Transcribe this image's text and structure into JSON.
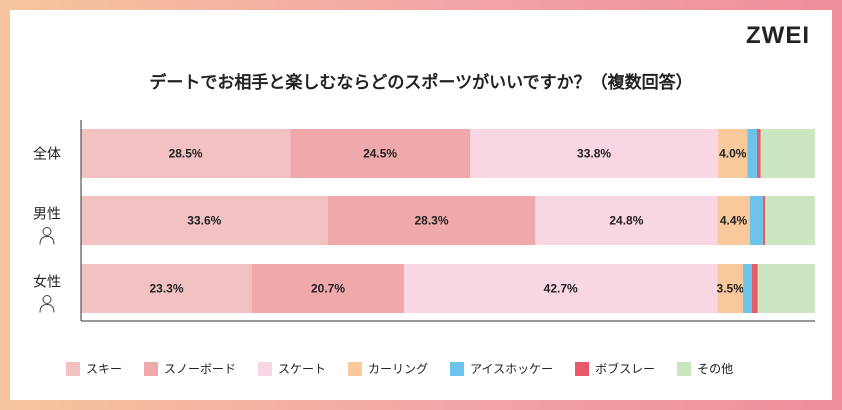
{
  "brand": "ZWEI",
  "chart_data": {
    "type": "bar",
    "orientation": "horizontal-stacked-100",
    "title": "デートでお相手と楽しむならどのスポーツがいいですか？（複数回答）",
    "categories": [
      "全体",
      "男性",
      "女性"
    ],
    "series": [
      {
        "name": "スキー",
        "color": "#f2c2c3",
        "values": [
          28.5,
          33.6,
          23.3
        ]
      },
      {
        "name": "スノーボード",
        "color": "#f0a9aa",
        "values": [
          24.5,
          28.3,
          20.7
        ]
      },
      {
        "name": "スケート",
        "color": "#f9d6e3",
        "values": [
          33.8,
          24.8,
          42.7
        ]
      },
      {
        "name": "カーリング",
        "color": "#f9c99b",
        "values": [
          4.0,
          4.4,
          3.5
        ]
      },
      {
        "name": "アイスホッケー",
        "color": "#6cc3ec",
        "values": [
          1.3,
          1.8,
          1.2
        ]
      },
      {
        "name": "ボブスレー",
        "color": "#e85a6a",
        "values": [
          0.5,
          0.3,
          0.8
        ]
      },
      {
        "name": "その他",
        "color": "#cce6c2",
        "values": [
          7.4,
          6.8,
          7.8
        ]
      }
    ],
    "data_labels": [
      [
        "28.5%",
        "24.5%",
        "33.8%",
        "4.0%"
      ],
      [
        "33.6%",
        "28.3%",
        "24.8%",
        "4.4%"
      ],
      [
        "23.3%",
        "20.7%",
        "42.7%",
        "3.5%"
      ]
    ],
    "xlim": [
      0,
      100
    ],
    "legend_position": "bottom"
  }
}
